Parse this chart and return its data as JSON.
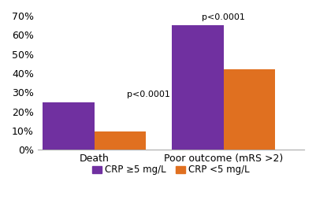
{
  "categories": [
    "Death",
    "Poor outcome (mRS >2)"
  ],
  "purple_values": [
    25,
    65
  ],
  "orange_values": [
    9.5,
    42
  ],
  "purple_color": "#7030A0",
  "orange_color": "#E07020",
  "ylim": [
    0,
    70
  ],
  "yticks": [
    0,
    10,
    20,
    30,
    40,
    50,
    60,
    70
  ],
  "ytick_labels": [
    "0%",
    "10%",
    "20%",
    "30%",
    "40%",
    "50%",
    "60%",
    "70%"
  ],
  "pvalue_death": "p<0.0001",
  "pvalue_poor": "p<0.0001",
  "legend_purple": "CRP ≥5 mg/L",
  "legend_orange": "CRP <5 mg/L",
  "bar_width": 0.32,
  "x_positions": [
    0.35,
    1.15
  ]
}
